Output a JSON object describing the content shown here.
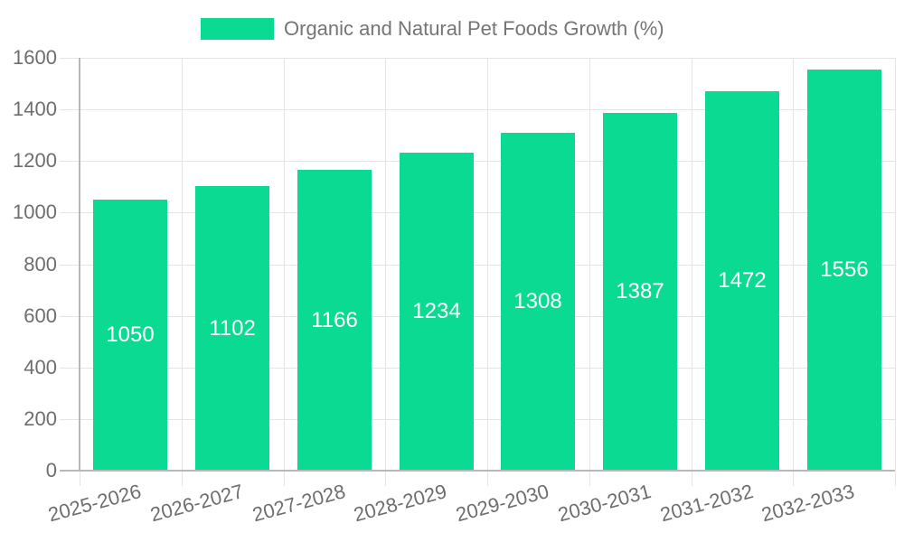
{
  "legend": {
    "label": "Organic and Natural Pet Foods Growth (%)"
  },
  "chart_data": {
    "type": "bar",
    "title": "Organic and Natural Pet Foods Growth (%)",
    "categories": [
      "2025-2026",
      "2026-2027",
      "2027-2028",
      "2028-2029",
      "2029-2030",
      "2030-2031",
      "2031-2032",
      "2032-2033"
    ],
    "series": [
      {
        "name": "Organic and Natural Pet Foods Growth (%)",
        "values": [
          1050,
          1102,
          1166,
          1234,
          1308,
          1387,
          1472,
          1556
        ]
      }
    ],
    "values": [
      1050,
      1102,
      1166,
      1234,
      1308,
      1387,
      1472,
      1556
    ],
    "value_labels": [
      "1050",
      "1102",
      "1166",
      "1234",
      "1308",
      "1387",
      "1472",
      "1556"
    ],
    "xlabel": "",
    "ylabel": "",
    "ylim": [
      0,
      1600
    ],
    "ytick_interval": 200,
    "yticks": [
      0,
      200,
      400,
      600,
      800,
      1000,
      1200,
      1400,
      1600
    ],
    "grid": "both",
    "legend_position": "top",
    "colors": {
      "bar": "#0bdb92",
      "grid": "#e4e4e4",
      "axis_line": "#b8b8b8",
      "axis_text": "#6e6e6e",
      "legend_text": "#757575",
      "value_text": "#ffffff",
      "background": "#ffffff"
    }
  }
}
